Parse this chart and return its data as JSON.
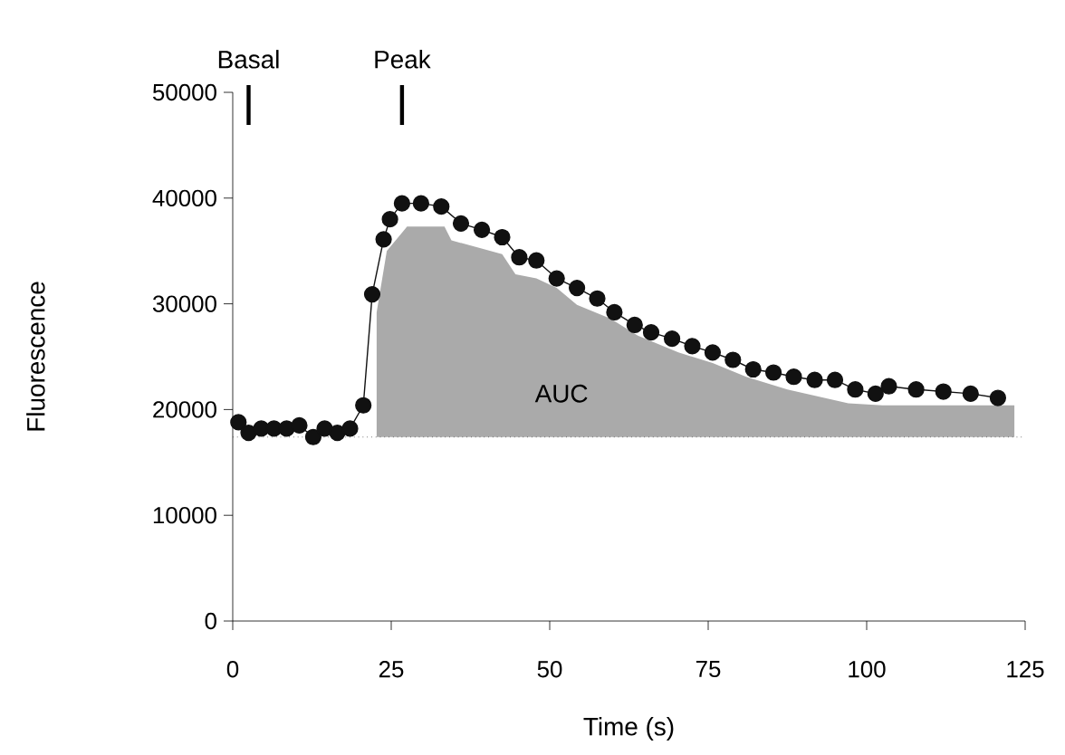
{
  "chart_data": {
    "type": "line",
    "xlabel": "Time (s)",
    "ylabel": "Fluorescence",
    "xlim": [
      0,
      125
    ],
    "xticks": [
      0,
      25,
      50,
      75,
      100,
      125
    ],
    "ylim": [
      0,
      50000
    ],
    "yticks": [
      0,
      10000,
      20000,
      30000,
      40000,
      50000
    ],
    "grid": false,
    "series": [
      {
        "type": "area",
        "color": "#aaaaaa",
        "x": [
          22.7,
          24.3,
          27.5,
          33.4,
          34.5,
          42.5,
          44.6,
          47.9,
          51.1,
          54.3,
          59.6,
          63.9,
          70.3,
          75.7,
          81,
          87.5,
          97.1,
          102.5,
          123.3
        ],
        "values": [
          29200,
          35000,
          37300,
          37300,
          36000,
          34700,
          32800,
          32400,
          31500,
          29900,
          28600,
          27000,
          25400,
          24400,
          23100,
          21900,
          20600,
          20400,
          20400
        ]
      },
      {
        "color": "#111111",
        "marker": "circle",
        "line_style": "solid",
        "x": [
          0.9,
          2.5,
          4.5,
          6.5,
          8.5,
          10.5,
          12.7,
          14.5,
          16.5,
          18.5,
          20.6,
          22,
          23.8,
          24.8,
          26.7,
          29.7,
          32.9,
          36,
          39.3,
          42.5,
          45.2,
          47.9,
          51.1,
          54.3,
          57.5,
          60.2,
          63.4,
          66,
          69.3,
          72.5,
          75.7,
          78.9,
          82.1,
          85.3,
          88.5,
          91.8,
          95,
          98.2,
          101.4,
          103.5,
          107.8,
          112.1,
          116.4,
          120.7
        ],
        "values": [
          18800,
          17800,
          18200,
          18200,
          18200,
          18500,
          17400,
          18200,
          17800,
          18200,
          20400,
          30900,
          36100,
          38000,
          39500,
          39500,
          39200,
          37600,
          37000,
          36300,
          34400,
          34100,
          32400,
          31500,
          30500,
          29200,
          28000,
          27300,
          26700,
          26000,
          25400,
          24700,
          23800,
          23500,
          23100,
          22800,
          22800,
          21900,
          21500,
          22200,
          21900,
          21700,
          21500,
          21100
        ]
      }
    ],
    "ref_lines": [
      {
        "axis": "y",
        "value": 17400,
        "line_style": "dotted",
        "color": "#333333"
      }
    ],
    "annotations": [
      "Basal",
      "Peak",
      "AUC"
    ]
  }
}
